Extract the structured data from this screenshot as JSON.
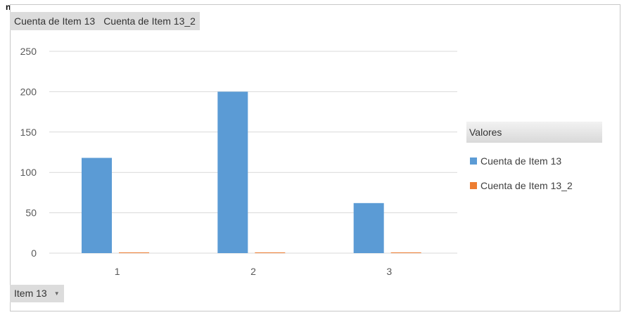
{
  "page": {
    "cut_off_text": "n"
  },
  "pivot": {
    "value_fields": [
      "Cuenta de Item 13",
      "Cuenta de Item 13_2"
    ],
    "axis_field": "Item 13"
  },
  "legend": {
    "title": "Valores",
    "position": "right"
  },
  "chart_data": {
    "type": "bar",
    "title": "",
    "xlabel": "",
    "ylabel": "",
    "categories": [
      "1",
      "2",
      "3"
    ],
    "series": [
      {
        "name": "Cuenta de Item 13",
        "values": [
          118,
          200,
          62
        ],
        "color": "#5b9bd5"
      },
      {
        "name": "Cuenta de Item 13_2",
        "values": [
          0,
          0,
          0
        ],
        "color": "#ed7d31"
      }
    ],
    "ylim": [
      0,
      250
    ],
    "yticks": [
      0,
      50,
      100,
      150,
      200,
      250
    ],
    "grid": true,
    "gridline_color": "#d9d9d9"
  }
}
